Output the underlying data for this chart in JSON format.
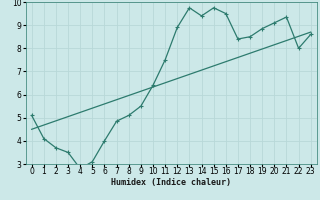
{
  "xlabel": "Humidex (Indice chaleur)",
  "ylabel": "",
  "bg_color": "#cce8e8",
  "grid_color": "#b8d8d8",
  "line_color": "#2d7b6e",
  "xlim": [
    -0.5,
    23.5
  ],
  "ylim": [
    3,
    10
  ],
  "xticks": [
    0,
    1,
    2,
    3,
    4,
    5,
    6,
    7,
    8,
    9,
    10,
    11,
    12,
    13,
    14,
    15,
    16,
    17,
    18,
    19,
    20,
    21,
    22,
    23
  ],
  "yticks": [
    3,
    4,
    5,
    6,
    7,
    8,
    9,
    10
  ],
  "curve_x": [
    0,
    1,
    2,
    3,
    4,
    5,
    6,
    7,
    8,
    9,
    10,
    11,
    12,
    13,
    14,
    15,
    16,
    17,
    18,
    19,
    20,
    21,
    22,
    23
  ],
  "curve_y": [
    5.1,
    4.1,
    3.7,
    3.5,
    2.8,
    3.1,
    4.0,
    4.85,
    5.1,
    5.5,
    6.4,
    7.5,
    8.9,
    9.75,
    9.4,
    9.75,
    9.5,
    8.4,
    8.5,
    8.85,
    9.1,
    9.35,
    8.0,
    8.6
  ],
  "trend_x": [
    0,
    23
  ],
  "trend_y": [
    4.5,
    8.7
  ],
  "marker_size": 2.2,
  "linewidth": 0.9,
  "font_size_label": 6,
  "font_size_tick": 5.5
}
